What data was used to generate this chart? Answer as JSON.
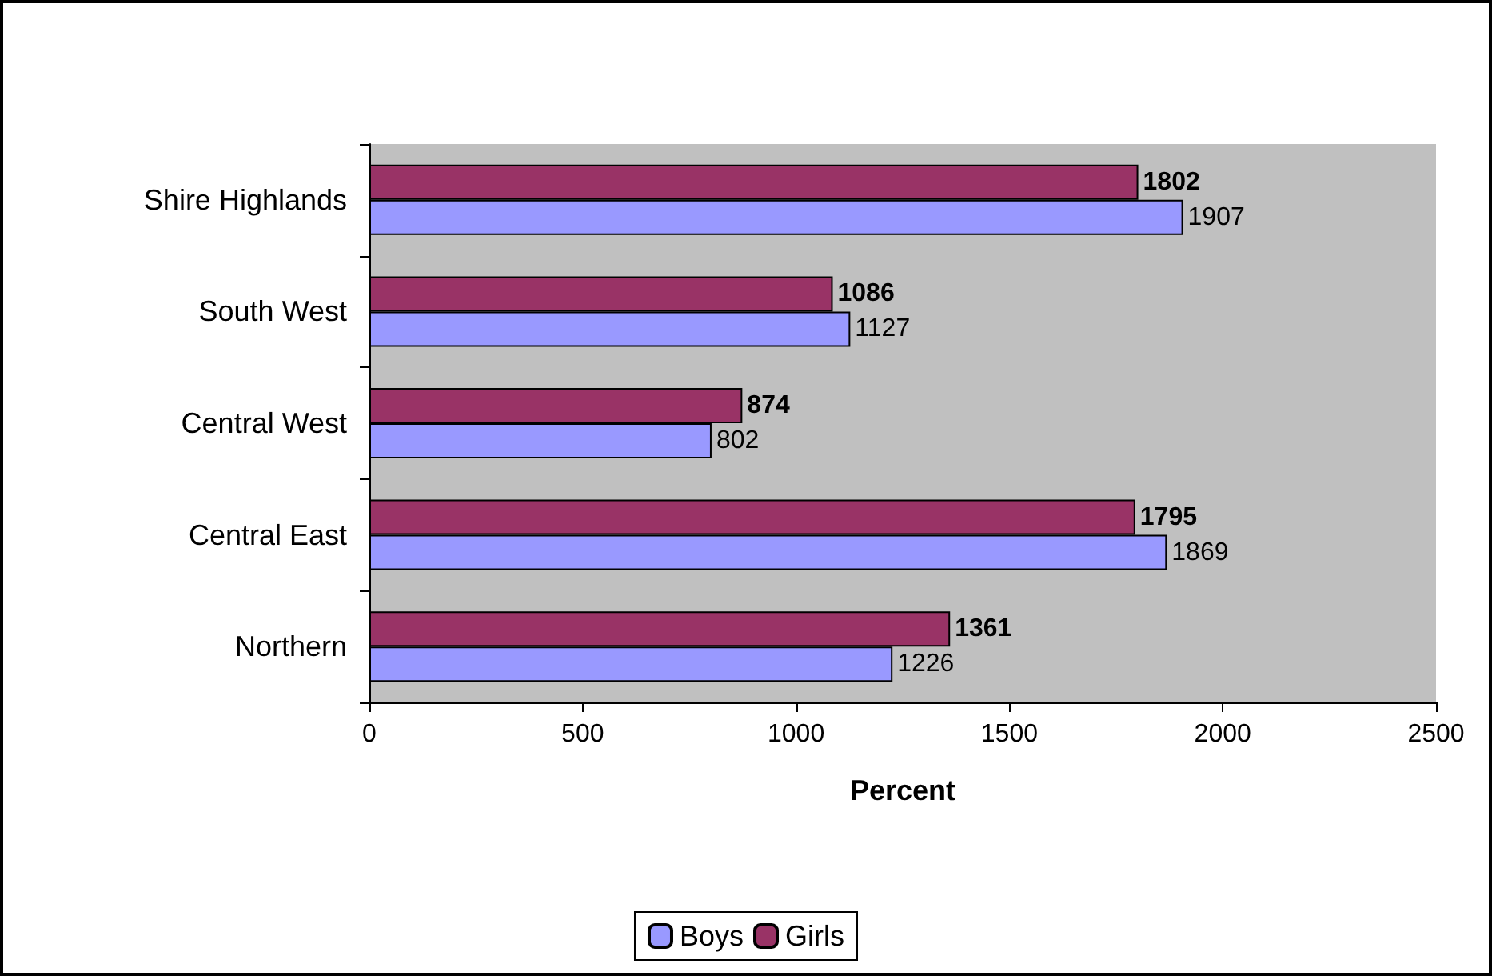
{
  "chart_data": {
    "type": "bar",
    "orientation": "horizontal",
    "xlabel": "Percent",
    "categories": [
      "Shire Highlands",
      "South West",
      "Central West",
      "Central East",
      "Northern"
    ],
    "series": [
      {
        "name": "Boys",
        "color": "#9999ff",
        "values": [
          1907,
          1127,
          802,
          1869,
          1226
        ]
      },
      {
        "name": "Girls",
        "color": "#993366",
        "values": [
          1802,
          1086,
          874,
          1795,
          1361
        ]
      }
    ],
    "xlim": [
      0,
      2500
    ],
    "xticks": [
      0,
      500,
      1000,
      1500,
      2000,
      2500
    ],
    "data_labels": true,
    "grid": false,
    "legend": "bottom"
  }
}
